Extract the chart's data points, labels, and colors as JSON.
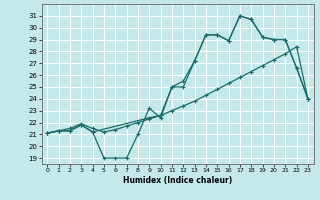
{
  "xlabel": "Humidex (Indice chaleur)",
  "ylabel": "",
  "xlim": [
    -0.5,
    23.5
  ],
  "ylim": [
    18.5,
    32.0
  ],
  "yticks": [
    19,
    20,
    21,
    22,
    23,
    24,
    25,
    26,
    27,
    28,
    29,
    30,
    31
  ],
  "xticks": [
    0,
    1,
    2,
    3,
    4,
    5,
    6,
    7,
    8,
    9,
    10,
    11,
    12,
    13,
    14,
    15,
    16,
    17,
    18,
    19,
    20,
    21,
    22,
    23
  ],
  "bg_color": "#c5e8e8",
  "line_color": "#1a6b6b",
  "grid_color": "#ffffff",
  "line1_x": [
    0,
    1,
    2,
    3,
    4,
    5,
    6,
    7,
    8,
    9,
    10,
    11,
    12,
    13,
    14,
    15,
    16,
    17,
    18,
    19,
    20,
    21,
    22,
    23
  ],
  "line1_y": [
    21.1,
    21.3,
    21.3,
    21.8,
    21.2,
    19.0,
    19.0,
    19.0,
    21.0,
    23.2,
    22.4,
    25.0,
    25.0,
    27.2,
    29.4,
    29.4,
    28.9,
    31.0,
    30.7,
    29.2,
    29.0,
    29.0,
    26.6,
    24.0
  ],
  "line2_x": [
    0,
    1,
    2,
    3,
    4,
    5,
    6,
    7,
    8,
    9,
    10,
    11,
    12,
    13,
    14,
    15,
    16,
    17,
    18,
    19,
    20,
    21,
    22,
    23
  ],
  "line2_y": [
    21.1,
    21.3,
    21.5,
    21.9,
    21.5,
    21.2,
    21.4,
    21.7,
    22.0,
    22.3,
    22.6,
    23.0,
    23.4,
    23.8,
    24.3,
    24.8,
    25.3,
    25.8,
    26.3,
    26.8,
    27.3,
    27.8,
    28.4,
    24.0
  ],
  "line3_x": [
    0,
    1,
    2,
    3,
    4,
    9,
    10,
    11,
    12,
    13,
    14,
    15,
    16,
    17,
    18,
    19,
    20,
    21,
    22,
    23
  ],
  "line3_y": [
    21.1,
    21.3,
    21.3,
    21.8,
    21.2,
    22.4,
    22.6,
    25.0,
    25.5,
    27.2,
    29.4,
    29.4,
    28.9,
    31.0,
    30.7,
    29.2,
    29.0,
    29.0,
    26.6,
    24.0
  ]
}
